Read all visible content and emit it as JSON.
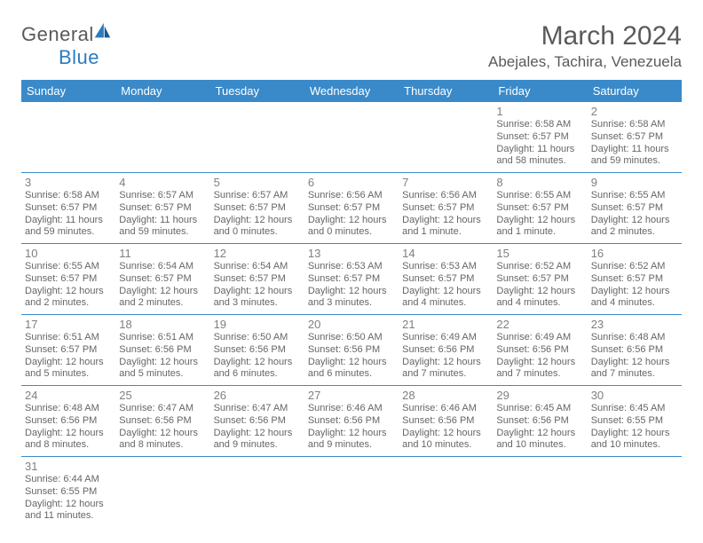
{
  "brand": {
    "word1": "General",
    "word2": "Blue"
  },
  "title": "March 2024",
  "location": "Abejales, Tachira, Venezuela",
  "colors": {
    "header_bg": "#3a8ac9",
    "header_fg": "#ffffff",
    "text": "#666666",
    "rule": "#3a8ac9"
  },
  "dayNames": [
    "Sunday",
    "Monday",
    "Tuesday",
    "Wednesday",
    "Thursday",
    "Friday",
    "Saturday"
  ],
  "firstDayIndex": 5,
  "daysInMonth": 31,
  "days": {
    "1": {
      "sunrise": "6:58 AM",
      "sunset": "6:57 PM",
      "daylight": "11 hours and 58 minutes."
    },
    "2": {
      "sunrise": "6:58 AM",
      "sunset": "6:57 PM",
      "daylight": "11 hours and 59 minutes."
    },
    "3": {
      "sunrise": "6:58 AM",
      "sunset": "6:57 PM",
      "daylight": "11 hours and 59 minutes."
    },
    "4": {
      "sunrise": "6:57 AM",
      "sunset": "6:57 PM",
      "daylight": "11 hours and 59 minutes."
    },
    "5": {
      "sunrise": "6:57 AM",
      "sunset": "6:57 PM",
      "daylight": "12 hours and 0 minutes."
    },
    "6": {
      "sunrise": "6:56 AM",
      "sunset": "6:57 PM",
      "daylight": "12 hours and 0 minutes."
    },
    "7": {
      "sunrise": "6:56 AM",
      "sunset": "6:57 PM",
      "daylight": "12 hours and 1 minute."
    },
    "8": {
      "sunrise": "6:55 AM",
      "sunset": "6:57 PM",
      "daylight": "12 hours and 1 minute."
    },
    "9": {
      "sunrise": "6:55 AM",
      "sunset": "6:57 PM",
      "daylight": "12 hours and 2 minutes."
    },
    "10": {
      "sunrise": "6:55 AM",
      "sunset": "6:57 PM",
      "daylight": "12 hours and 2 minutes."
    },
    "11": {
      "sunrise": "6:54 AM",
      "sunset": "6:57 PM",
      "daylight": "12 hours and 2 minutes."
    },
    "12": {
      "sunrise": "6:54 AM",
      "sunset": "6:57 PM",
      "daylight": "12 hours and 3 minutes."
    },
    "13": {
      "sunrise": "6:53 AM",
      "sunset": "6:57 PM",
      "daylight": "12 hours and 3 minutes."
    },
    "14": {
      "sunrise": "6:53 AM",
      "sunset": "6:57 PM",
      "daylight": "12 hours and 4 minutes."
    },
    "15": {
      "sunrise": "6:52 AM",
      "sunset": "6:57 PM",
      "daylight": "12 hours and 4 minutes."
    },
    "16": {
      "sunrise": "6:52 AM",
      "sunset": "6:57 PM",
      "daylight": "12 hours and 4 minutes."
    },
    "17": {
      "sunrise": "6:51 AM",
      "sunset": "6:57 PM",
      "daylight": "12 hours and 5 minutes."
    },
    "18": {
      "sunrise": "6:51 AM",
      "sunset": "6:56 PM",
      "daylight": "12 hours and 5 minutes."
    },
    "19": {
      "sunrise": "6:50 AM",
      "sunset": "6:56 PM",
      "daylight": "12 hours and 6 minutes."
    },
    "20": {
      "sunrise": "6:50 AM",
      "sunset": "6:56 PM",
      "daylight": "12 hours and 6 minutes."
    },
    "21": {
      "sunrise": "6:49 AM",
      "sunset": "6:56 PM",
      "daylight": "12 hours and 7 minutes."
    },
    "22": {
      "sunrise": "6:49 AM",
      "sunset": "6:56 PM",
      "daylight": "12 hours and 7 minutes."
    },
    "23": {
      "sunrise": "6:48 AM",
      "sunset": "6:56 PM",
      "daylight": "12 hours and 7 minutes."
    },
    "24": {
      "sunrise": "6:48 AM",
      "sunset": "6:56 PM",
      "daylight": "12 hours and 8 minutes."
    },
    "25": {
      "sunrise": "6:47 AM",
      "sunset": "6:56 PM",
      "daylight": "12 hours and 8 minutes."
    },
    "26": {
      "sunrise": "6:47 AM",
      "sunset": "6:56 PM",
      "daylight": "12 hours and 9 minutes."
    },
    "27": {
      "sunrise": "6:46 AM",
      "sunset": "6:56 PM",
      "daylight": "12 hours and 9 minutes."
    },
    "28": {
      "sunrise": "6:46 AM",
      "sunset": "6:56 PM",
      "daylight": "12 hours and 10 minutes."
    },
    "29": {
      "sunrise": "6:45 AM",
      "sunset": "6:56 PM",
      "daylight": "12 hours and 10 minutes."
    },
    "30": {
      "sunrise": "6:45 AM",
      "sunset": "6:55 PM",
      "daylight": "12 hours and 10 minutes."
    },
    "31": {
      "sunrise": "6:44 AM",
      "sunset": "6:55 PM",
      "daylight": "12 hours and 11 minutes."
    }
  },
  "labels": {
    "sunrise": "Sunrise:",
    "sunset": "Sunset:",
    "daylight": "Daylight:"
  }
}
